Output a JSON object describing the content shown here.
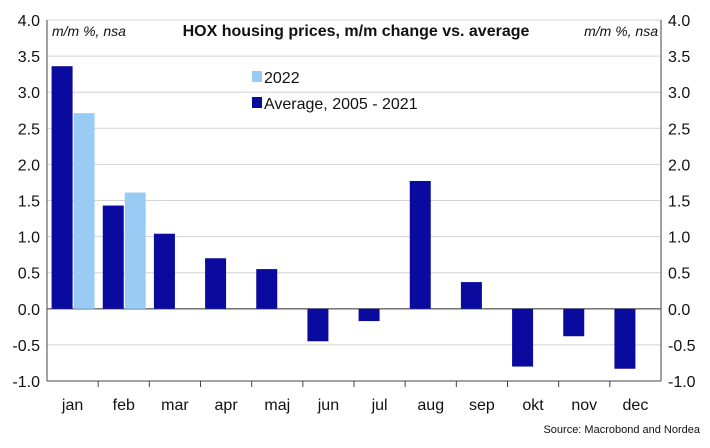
{
  "chart_data": {
    "type": "bar",
    "title": "HOX housing prices, m/m change vs. average",
    "y_unit_left": "m/m %, nsa",
    "y_unit_right": "m/m %, nsa",
    "categories": [
      "jan",
      "feb",
      "mar",
      "apr",
      "maj",
      "jun",
      "jul",
      "aug",
      "sep",
      "okt",
      "nov",
      "dec"
    ],
    "series": [
      {
        "name": "Average, 2005 - 2021",
        "color": "#0a0a9e",
        "values": [
          3.36,
          1.43,
          1.04,
          0.7,
          0.55,
          -0.45,
          -0.17,
          1.77,
          0.37,
          -0.8,
          -0.38,
          -0.83
        ]
      },
      {
        "name": "2022",
        "color": "#99ccf5",
        "values": [
          2.71,
          1.61,
          null,
          null,
          null,
          null,
          null,
          null,
          null,
          null,
          null,
          null
        ]
      }
    ],
    "ylim": [
      -1.0,
      4.0
    ],
    "yticks": [
      "4.0",
      "3.5",
      "3.0",
      "2.5",
      "2.0",
      "1.5",
      "1.0",
      "0.5",
      "0.0",
      "-0.5",
      "-1.0"
    ],
    "ytick_values": [
      4.0,
      3.5,
      3.0,
      2.5,
      2.0,
      1.5,
      1.0,
      0.5,
      0.0,
      -0.5,
      -1.0
    ],
    "legend_position": "top-center",
    "grid": true,
    "source": "Source: Macrobond and Nordea"
  }
}
